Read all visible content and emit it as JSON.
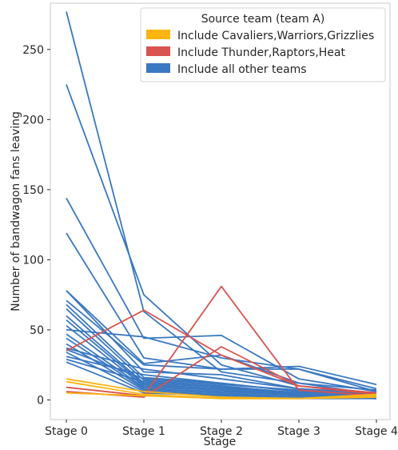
{
  "chart_data": {
    "type": "line",
    "title": "",
    "xlabel": "Stage",
    "ylabel": "Number of bandwagon fans leaving",
    "categories": [
      "Stage 0",
      "Stage 1",
      "Stage 2",
      "Stage 3",
      "Stage 4"
    ],
    "ylim": [
      -14,
      283
    ],
    "yticks": [
      0,
      50,
      100,
      150,
      200,
      250
    ],
    "grid": false,
    "legend": {
      "title": "Source team (team A)",
      "placement": "top-right",
      "entries": [
        {
          "label": "Include Cavaliers,Warriors,Grizzlies",
          "color": "#fbb412"
        },
        {
          "label": "Include Thunder,Raptors,Heat",
          "color": "#d9534f"
        },
        {
          "label": "Include all other teams",
          "color": "#3a78c1"
        }
      ]
    },
    "series": [
      {
        "group": "other",
        "color": "#3a78c1",
        "values": [
          277,
          63,
          20,
          12,
          7
        ]
      },
      {
        "group": "other",
        "color": "#3a78c1",
        "values": [
          225,
          75,
          25,
          10,
          5
        ]
      },
      {
        "group": "other",
        "color": "#3a78c1",
        "values": [
          144,
          44,
          46,
          15,
          6
        ]
      },
      {
        "group": "other",
        "color": "#3a78c1",
        "values": [
          119,
          30,
          22,
          24,
          11
        ]
      },
      {
        "group": "other",
        "color": "#3a78c1",
        "values": [
          78,
          26,
          32,
          12,
          4
        ]
      },
      {
        "group": "other",
        "color": "#3a78c1",
        "values": [
          78,
          20,
          18,
          8,
          5
        ]
      },
      {
        "group": "other",
        "color": "#3a78c1",
        "values": [
          71,
          25,
          22,
          22,
          8
        ]
      },
      {
        "group": "other",
        "color": "#3a78c1",
        "values": [
          68,
          16,
          12,
          6,
          4
        ]
      },
      {
        "group": "other",
        "color": "#3a78c1",
        "values": [
          65,
          14,
          10,
          5,
          3
        ]
      },
      {
        "group": "other",
        "color": "#3a78c1",
        "values": [
          60,
          12,
          9,
          5,
          3
        ]
      },
      {
        "group": "other",
        "color": "#3a78c1",
        "values": [
          57,
          11,
          8,
          4,
          2
        ]
      },
      {
        "group": "other",
        "color": "#3a78c1",
        "values": [
          53,
          10,
          8,
          4,
          2
        ]
      },
      {
        "group": "other",
        "color": "#3a78c1",
        "values": [
          50,
          45,
          30,
          22,
          6
        ]
      },
      {
        "group": "other",
        "color": "#3a78c1",
        "values": [
          47,
          9,
          7,
          3,
          2
        ]
      },
      {
        "group": "other",
        "color": "#3a78c1",
        "values": [
          44,
          8,
          6,
          3,
          2
        ]
      },
      {
        "group": "other",
        "color": "#3a78c1",
        "values": [
          40,
          7,
          5,
          2,
          1
        ]
      },
      {
        "group": "other",
        "color": "#3a78c1",
        "values": [
          37,
          22,
          15,
          8,
          4
        ]
      },
      {
        "group": "other",
        "color": "#3a78c1",
        "values": [
          34,
          6,
          4,
          2,
          1
        ]
      },
      {
        "group": "other",
        "color": "#3a78c1",
        "values": [
          31,
          18,
          12,
          6,
          3
        ]
      },
      {
        "group": "other",
        "color": "#3a78c1",
        "values": [
          29,
          13,
          9,
          4,
          2
        ]
      },
      {
        "group": "other",
        "color": "#3a78c1",
        "values": [
          27,
          5,
          3,
          1,
          1
        ]
      },
      {
        "group": "other",
        "color": "#3a78c1",
        "values": [
          36,
          15,
          11,
          7,
          3
        ]
      },
      {
        "group": "heat",
        "color": "#d9534f",
        "values": [
          35,
          64,
          32,
          10,
          4
        ]
      },
      {
        "group": "heat",
        "color": "#d9534f",
        "values": [
          9,
          3,
          81,
          7,
          3
        ]
      },
      {
        "group": "heat",
        "color": "#d9534f",
        "values": [
          6,
          2,
          38,
          10,
          5
        ]
      },
      {
        "group": "cav",
        "color": "#fbb412",
        "values": [
          15,
          6,
          2,
          1,
          4
        ]
      },
      {
        "group": "cav",
        "color": "#fbb412",
        "values": [
          13,
          4,
          1,
          1,
          3
        ]
      },
      {
        "group": "cav",
        "color": "#fbb412",
        "values": [
          5,
          3,
          1,
          1,
          2
        ]
      }
    ]
  }
}
